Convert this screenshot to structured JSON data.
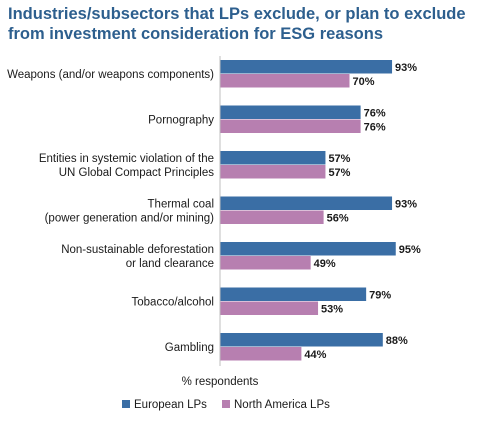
{
  "title": "Industries/subsectors that LPs exclude, or plan to exclude from investment consideration for ESG reasons",
  "chart_data": {
    "type": "bar",
    "orientation": "horizontal",
    "title": "Industries/subsectors that LPs exclude, or plan to exclude from investment consideration for ESG reasons",
    "xlabel": "% respondents",
    "ylabel": "",
    "xlim": [
      0,
      100
    ],
    "grid": false,
    "legend": "bottom",
    "value_suffix": "%",
    "categories": [
      [
        "Weapons (and/or weapons components)"
      ],
      [
        "Pornography"
      ],
      [
        "Entities in systemic violation of the",
        "UN Global Compact Principles"
      ],
      [
        "Thermal coal",
        "(power generation and/or mining)"
      ],
      [
        "Non-sustainable deforestation",
        "or land clearance"
      ],
      [
        "Tobacco/alcohol"
      ],
      [
        "Gambling"
      ]
    ],
    "series": [
      {
        "name": "European LPs",
        "color": "#3a6ea5",
        "values": [
          93,
          76,
          57,
          93,
          95,
          79,
          88
        ]
      },
      {
        "name": "North America LPs",
        "color": "#b77fb0",
        "values": [
          70,
          76,
          57,
          56,
          49,
          53,
          44
        ]
      }
    ]
  }
}
